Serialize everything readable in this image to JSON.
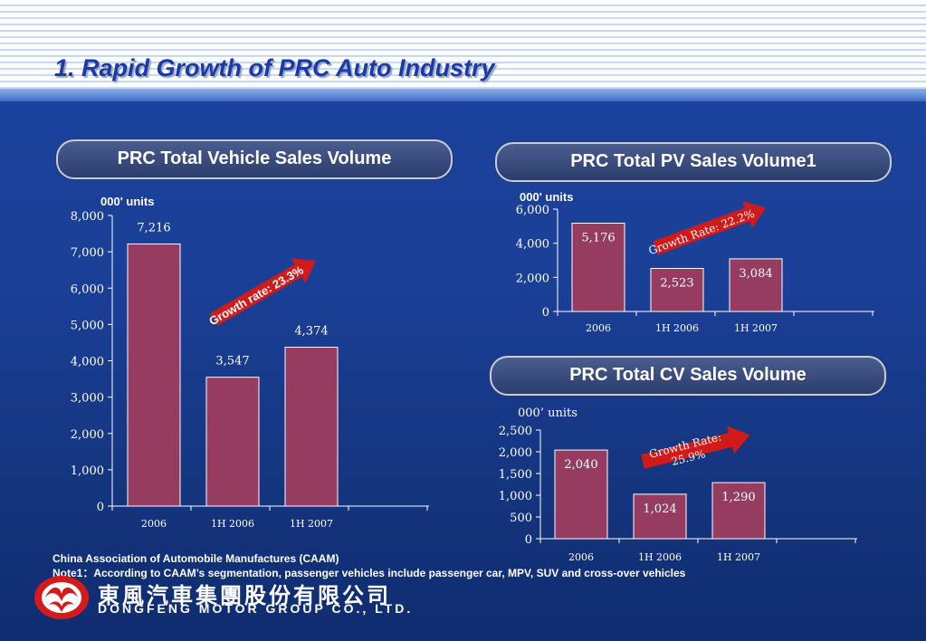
{
  "header": {
    "title": "1. Rapid Growth of PRC Auto Industry"
  },
  "colors": {
    "bar": "#963c60",
    "arrow": "#d11b1b",
    "axis": "#ffffff"
  },
  "panels": {
    "total": {
      "heading": "PRC Total Vehicle Sales Volume"
    },
    "pv": {
      "heading": "PRC Total PV Sales Volume1"
    },
    "cv": {
      "heading": "PRC Total CV Sales Volume"
    }
  },
  "chart_data": [
    {
      "type": "bar",
      "title": "PRC Total Vehicle Sales Volume",
      "unit_label": "000' units",
      "categories": [
        "2006",
        "1H 2006",
        "1H 2007"
      ],
      "values": [
        7216,
        3547,
        4374
      ],
      "value_labels": [
        "7,216",
        "3,547",
        "4,374"
      ],
      "ylim": [
        0,
        8000
      ],
      "yticks": [
        "0",
        "1,000",
        "2,000",
        "3,000",
        "4,000",
        "5,000",
        "6,000",
        "7,000",
        "8,000"
      ],
      "annotation": "Growth rate: 23.3%"
    },
    {
      "type": "bar",
      "title": "PRC Total PV Sales Volume1",
      "unit_label": "000' units",
      "categories": [
        "2006",
        "1H 2006",
        "1H 2007"
      ],
      "values": [
        5176,
        2523,
        3084
      ],
      "value_labels": [
        "5,176",
        "2,523",
        "3,084"
      ],
      "ylim": [
        0,
        6000
      ],
      "yticks": [
        "0",
        "2,000",
        "4,000",
        "6,000"
      ],
      "annotation": "Growth Rate: 22.2%"
    },
    {
      "type": "bar",
      "title": "PRC Total CV Sales Volume",
      "unit_label": "000’ units",
      "categories": [
        "2006",
        "1H 2006",
        "1H 2007"
      ],
      "values": [
        2040,
        1024,
        1290
      ],
      "value_labels": [
        "2,040",
        "1,024",
        "1,290"
      ],
      "ylim": [
        0,
        2500
      ],
      "yticks": [
        "0",
        "500",
        "1,000",
        "1,500",
        "2,000",
        "2,500"
      ],
      "annotation_lines": [
        "Growth Rate:",
        "25.9%"
      ]
    }
  ],
  "footer": {
    "source": "China Association of Automobile Manufactures (CAAM)",
    "note": "Note1：According to CAAM’s segmentation, passenger vehicles include passenger car, MPV, SUV and cross-over vehicles",
    "logo_cn": "東風汽車集團股份有限公司",
    "logo_en": "DONGFENG MOTOR GROUP CO., LTD."
  }
}
